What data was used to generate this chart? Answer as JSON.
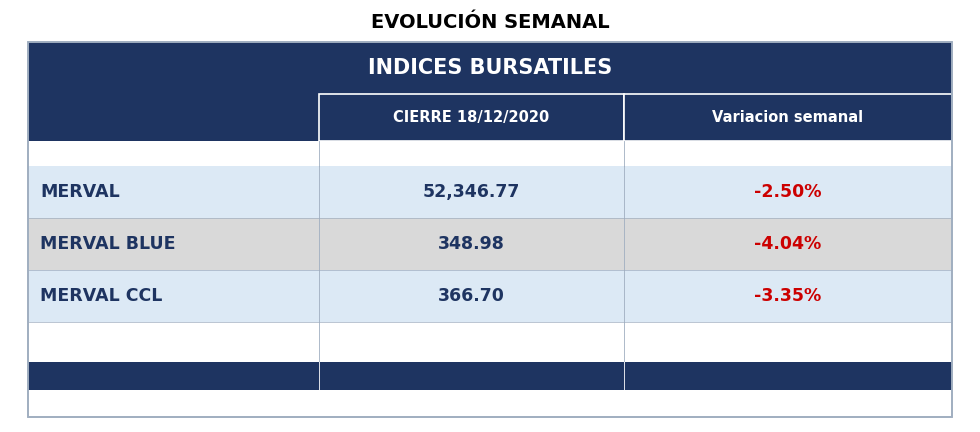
{
  "title": "EVOLUCIÓN SEMANAL",
  "table_header": "INDICES BURSATILES",
  "col_headers": [
    "",
    "CIERRE 18/12/2020",
    "Variacion semanal"
  ],
  "rows": [
    [
      "MERVAL",
      "52,346.77",
      "-2.50%"
    ],
    [
      "MERVAL BLUE",
      "348.98",
      "-4.04%"
    ],
    [
      "MERVAL CCL",
      "366.70",
      "-3.35%"
    ]
  ],
  "bg_color": "#ffffff",
  "header_bg": "#1e3461",
  "header_text_color": "#ffffff",
  "col_header_bg": "#1e3461",
  "col_header_text_color": "#ffffff",
  "row_bg_1": "#dce9f5",
  "row_bg_2": "#d9d9d9",
  "row_bg_3": "#dce9f5",
  "index_text_color": "#1e3461",
  "value_text_color": "#1e3461",
  "change_text_color": "#cc0000",
  "footer_bg": "#1e3461",
  "outer_border_color": "#a0aec0",
  "divider_color": "#ffffff",
  "title_fontsize": 14,
  "header_fontsize": 15,
  "col_header_fontsize": 10.5,
  "data_fontsize": 12.5,
  "col_split_1": 0.315,
  "col_split_2": 0.645
}
